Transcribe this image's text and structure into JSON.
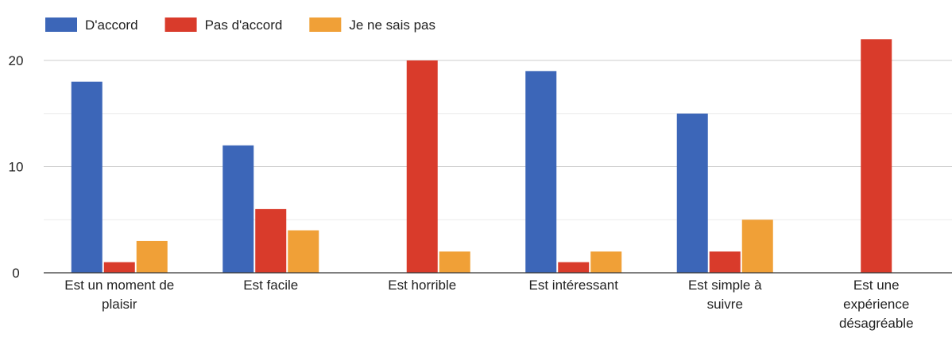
{
  "chart_data": {
    "type": "bar",
    "title": "",
    "xlabel": "",
    "ylabel": "",
    "ylim": [
      0,
      23
    ],
    "yticks": [
      0,
      10,
      20
    ],
    "grid": true,
    "legend_position": "top-left",
    "categories": [
      [
        "Est un moment de",
        "plaisir"
      ],
      [
        "Est facile"
      ],
      [
        "Est horrible"
      ],
      [
        "Est intéressant"
      ],
      [
        "Est simple à",
        "suivre"
      ],
      [
        "Est une",
        "expérience",
        "désagréable"
      ]
    ],
    "series": [
      {
        "name": "D'accord",
        "color": "#3c66b8",
        "values": [
          18,
          12,
          0,
          19,
          15,
          0
        ]
      },
      {
        "name": "Pas d'accord",
        "color": "#d93b2b",
        "values": [
          1,
          6,
          20,
          1,
          2,
          22
        ]
      },
      {
        "name": "Je ne sais pas",
        "color": "#f0a037",
        "values": [
          3,
          4,
          2,
          2,
          5,
          0
        ]
      }
    ]
  }
}
